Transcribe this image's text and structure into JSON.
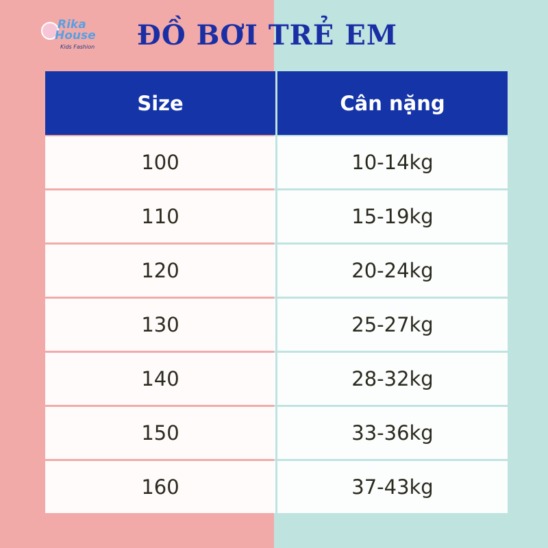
{
  "logo": {
    "line1": "Rika",
    "line2": "House",
    "tagline": "Kids Fashion"
  },
  "title": "ĐỒ BƠI TRẺ EM",
  "table": {
    "header": [
      "Size",
      "Cân nặng"
    ],
    "rows": [
      [
        "100",
        "10-14kg"
      ],
      [
        "110",
        "15-19kg"
      ],
      [
        "120",
        "20-24kg"
      ],
      [
        "130",
        "25-27kg"
      ],
      [
        "140",
        "28-32kg"
      ],
      [
        "150",
        "33-36kg"
      ],
      [
        "160",
        "37-43kg"
      ]
    ]
  }
}
